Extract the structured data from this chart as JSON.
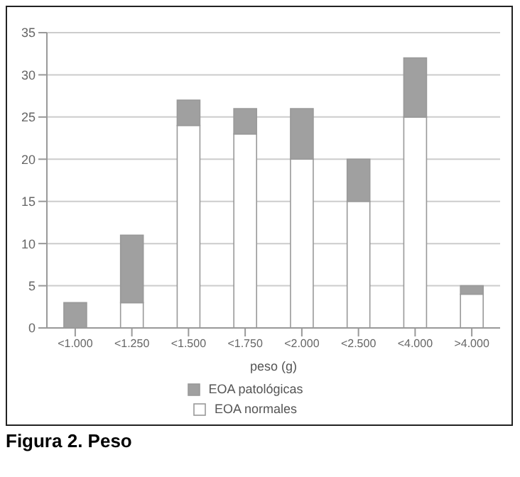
{
  "chart_data": {
    "type": "bar",
    "stacked": true,
    "xlabel": "peso (g)",
    "categories": [
      "<1.000",
      "<1.250",
      "<1.500",
      "<1.750",
      "<2.000",
      "<2.500",
      "<4.000",
      ">4.000"
    ],
    "series": [
      {
        "name": "EOA normales",
        "color": "#ffffff",
        "values": [
          0,
          3,
          24,
          23,
          20,
          15,
          25,
          4
        ]
      },
      {
        "name": "EOA patológicas",
        "color": "#a0a0a0",
        "values": [
          3,
          8,
          3,
          3,
          6,
          5,
          7,
          1
        ]
      }
    ],
    "ylim": [
      0,
      35
    ],
    "yticks": [
      0,
      5,
      10,
      15,
      20,
      25,
      30,
      35
    ],
    "grid": "y",
    "legend": "bottom",
    "annotations": [
      "Figura 2. Peso"
    ]
  }
}
